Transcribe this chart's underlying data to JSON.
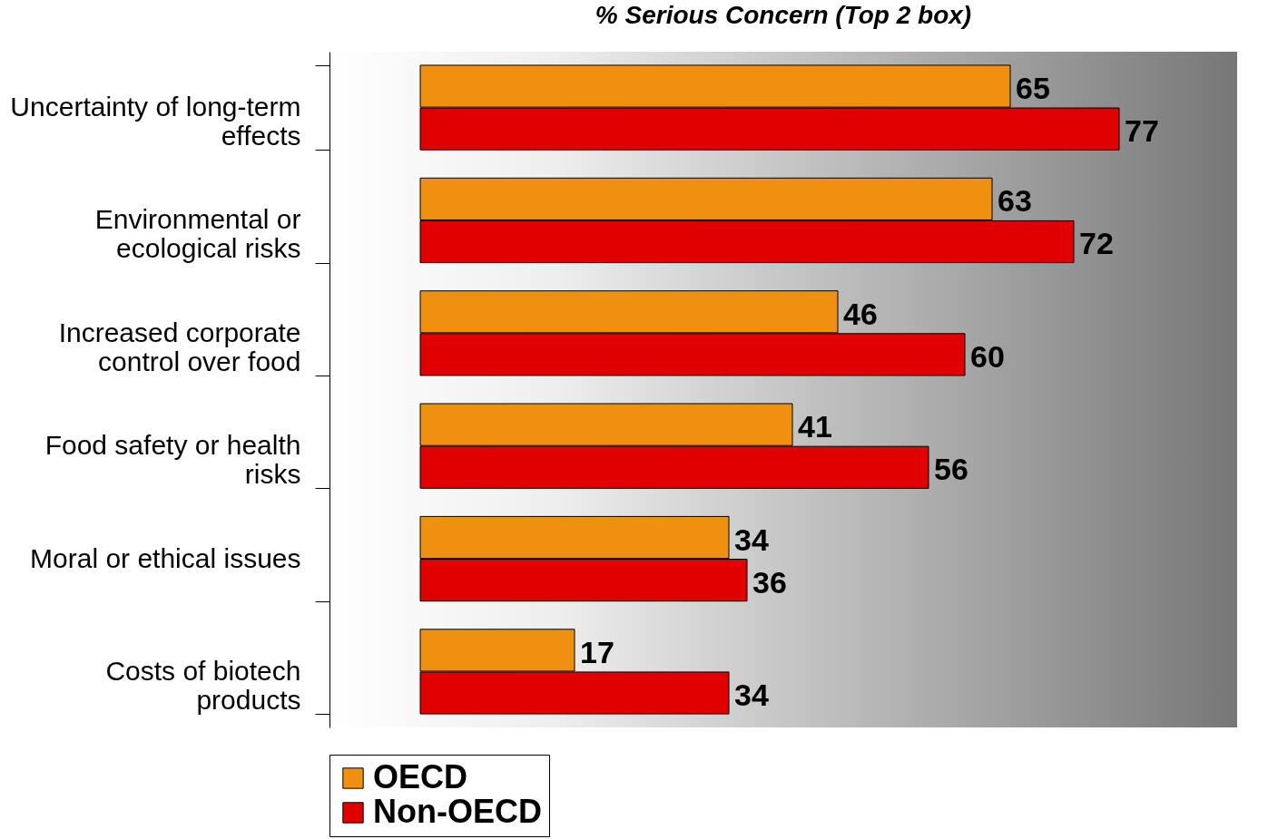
{
  "chart_data": {
    "type": "bar",
    "orientation": "horizontal",
    "title": "% Serious Concern (Top 2 box)",
    "categories": [
      "Uncertainty of long-term effects",
      "Environmental or ecological risks",
      "Increased corporate control over food",
      "Food safety or health risks",
      "Moral or ethical issues",
      "Costs of biotech products"
    ],
    "series": [
      {
        "name": "OECD",
        "color": "#f09010",
        "values": [
          65,
          63,
          46,
          41,
          34,
          17
        ]
      },
      {
        "name": "Non-OECD",
        "color": "#e00000",
        "values": [
          77,
          72,
          60,
          56,
          36,
          34
        ]
      }
    ],
    "data_labels": true,
    "legend": "bottom",
    "tick_labels": "y"
  }
}
